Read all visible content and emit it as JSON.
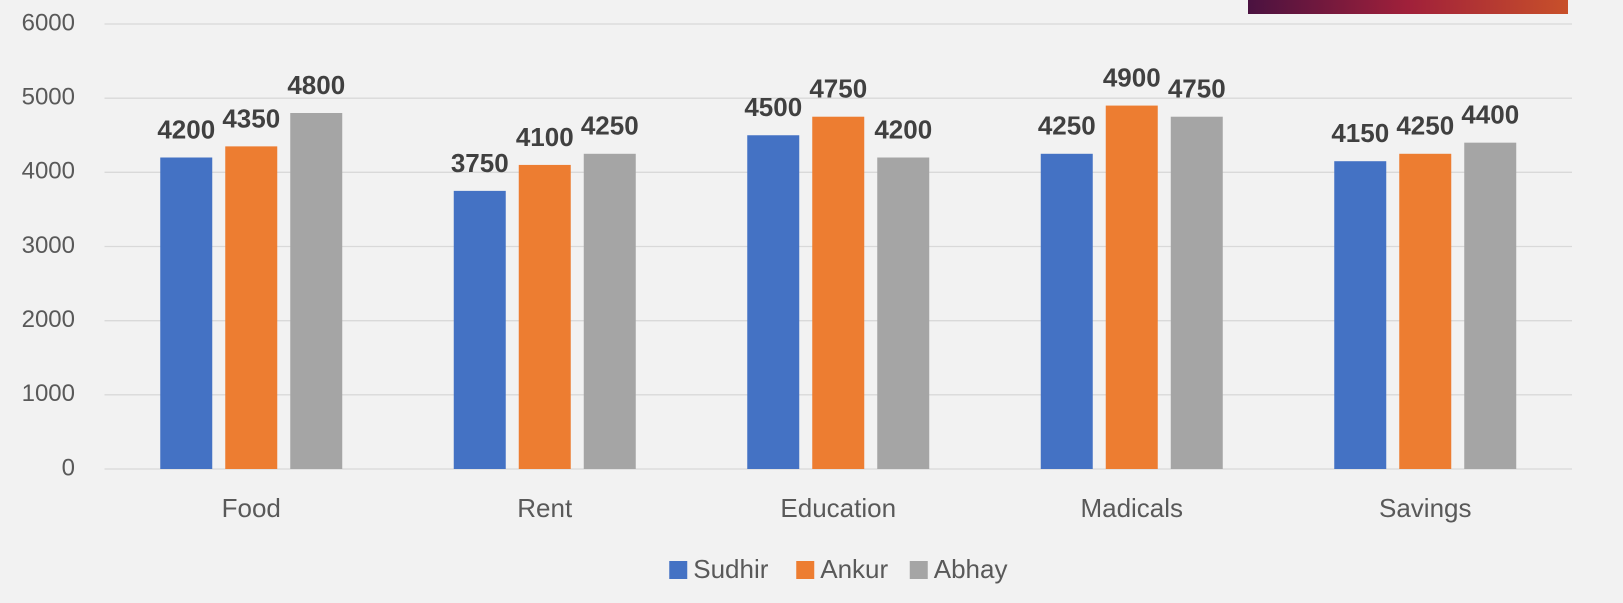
{
  "chart_data": {
    "type": "bar",
    "categories": [
      "Food",
      "Rent",
      "Education",
      "Madicals",
      "Savings"
    ],
    "series": [
      {
        "name": "Sudhir",
        "color": "#4472c4",
        "values": [
          4200,
          3750,
          4500,
          4250,
          4150
        ]
      },
      {
        "name": "Ankur",
        "color": "#ed7d31",
        "values": [
          4350,
          4100,
          4750,
          4900,
          4250
        ]
      },
      {
        "name": "Abhay",
        "color": "#a5a5a5",
        "values": [
          4800,
          4250,
          4200,
          4750,
          4400
        ]
      }
    ],
    "ylim": [
      0,
      6000
    ],
    "yticks": [
      0,
      1000,
      2000,
      3000,
      4000,
      5000,
      6000
    ],
    "grid": true,
    "legend": "bottom"
  }
}
